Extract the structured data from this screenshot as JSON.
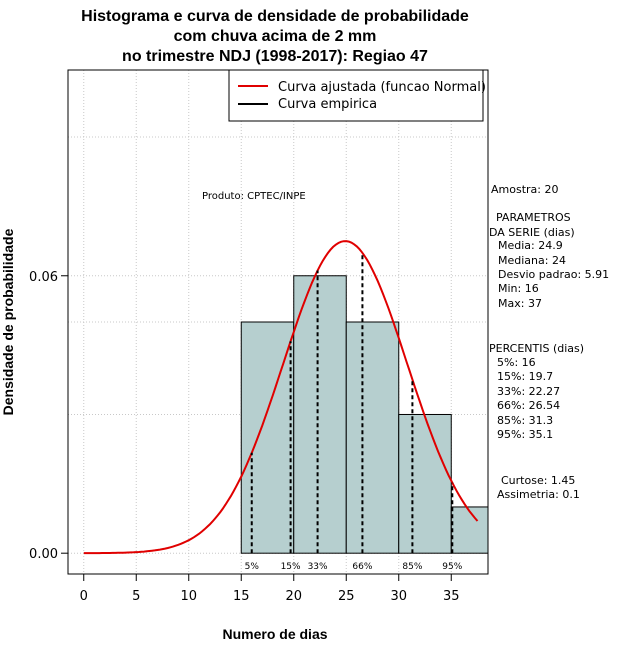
{
  "chart_data": {
    "type": "bar",
    "title": [
      "Histograma e curva de densidade de probabilidade",
      "com chuva acima de 2 mm",
      "no trimestre NDJ (1998-2017): Regiao 47"
    ],
    "xlabel": "Numero de dias",
    "ylabel": "Densidade de probabilidade",
    "xlim": [
      -1.5,
      38.5
    ],
    "ylim": [
      -0.0045,
      0.1045
    ],
    "x_ticks": [
      0,
      5,
      10,
      15,
      20,
      25,
      30,
      35
    ],
    "y_ticks": [
      0.0,
      0.06
    ],
    "y_tick_labels": [
      "0.00",
      "0.06"
    ],
    "grid": true,
    "bins": [
      {
        "from": 15,
        "to": 20,
        "density": 0.05
      },
      {
        "from": 20,
        "to": 25,
        "density": 0.06
      },
      {
        "from": 25,
        "to": 30,
        "density": 0.05
      },
      {
        "from": 30,
        "to": 35,
        "density": 0.03
      },
      {
        "from": 35,
        "to": 40,
        "density": 0.01
      }
    ],
    "bar_color": "#b6cfcf",
    "fitted_curve": {
      "name": "Curva ajustada (funcao Normal)",
      "distribution": "normal",
      "mean": 24.9,
      "sd": 5.91,
      "x_range": [
        0,
        37.5
      ],
      "color": "#e00000"
    },
    "empirical_curve": {
      "name": "Curva empirica",
      "color": "#000000"
    },
    "percentile_lines": [
      {
        "label": "5%",
        "x": 16
      },
      {
        "label": "15%",
        "x": 19.7
      },
      {
        "label": "33%",
        "x": 22.27
      },
      {
        "label": "66%",
        "x": 26.54
      },
      {
        "label": "85%",
        "x": 31.3
      },
      {
        "label": "95%",
        "x": 35.1
      }
    ],
    "legend": {
      "position": "top-right",
      "entries": [
        "Curva ajustada (funcao Normal)",
        "Curva empirica"
      ]
    }
  },
  "credit": "Produto: CPTEC/INPE",
  "stats": {
    "amostra": "Amostra: 20",
    "param_title1": "PARAMETROS",
    "param_title2": "DA SERIE (dias)",
    "media": "Media: 24.9",
    "mediana": "Mediana: 24",
    "desvio": "Desvio padrao: 5.91",
    "min": "Min: 16",
    "max": "Max: 37",
    "pct_title": "PERCENTIS (dias)",
    "p5": "5%: 16",
    "p15": "15%: 19.7",
    "p33": "33%: 22.27",
    "p66": "66%: 26.54",
    "p85": "85%: 31.3",
    "p95": "95%: 35.1",
    "curtose": "Curtose: 1.45",
    "assimetria": "Assimetria: 0.1"
  }
}
